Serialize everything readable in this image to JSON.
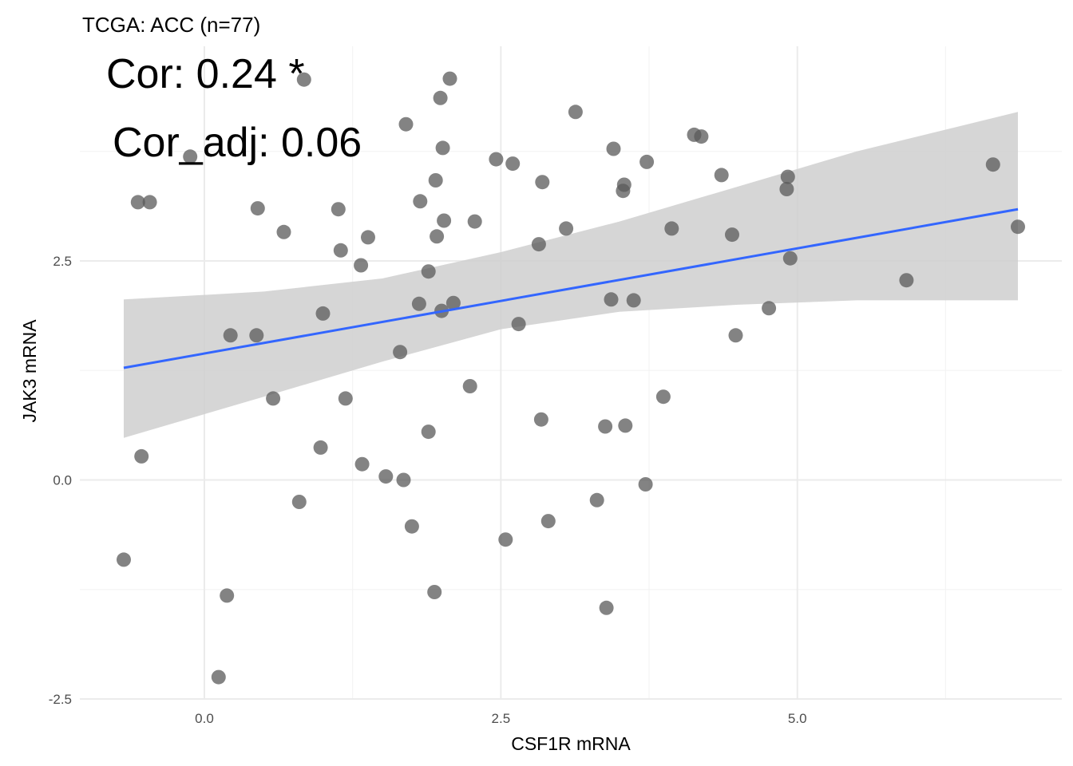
{
  "chart_data": {
    "type": "scatter",
    "title": "TCGA: ACC (n=77)",
    "xlabel": "CSF1R mRNA",
    "ylabel": "JAK3 mRNA",
    "xlim": [
      -1.05,
      7.23
    ],
    "ylim": [
      -2.5,
      4.95
    ],
    "x_ticks": [
      0.0,
      2.5,
      5.0
    ],
    "x_tick_labels": [
      "0.0",
      "2.5",
      "5.0"
    ],
    "y_ticks": [
      -2.5,
      0.0,
      2.5
    ],
    "y_tick_labels": [
      "-2.5",
      "0.0",
      "2.5"
    ],
    "grid": true,
    "annotations": [
      "Cor: 0.24 *",
      "Cor_adj: 0.06"
    ],
    "fit_line": {
      "x": [
        -0.68,
        6.86
      ],
      "y": [
        1.28,
        3.09
      ]
    },
    "confidence_band": {
      "x": [
        -0.68,
        0.5,
        1.5,
        2.5,
        3.5,
        4.5,
        5.5,
        6.86
      ],
      "upper": [
        2.06,
        2.15,
        2.3,
        2.6,
        2.95,
        3.35,
        3.75,
        4.2
      ],
      "lower": [
        0.48,
        0.95,
        1.35,
        1.72,
        1.92,
        2.0,
        2.05,
        2.05
      ]
    },
    "points": [
      {
        "x": -0.68,
        "y": -0.91
      },
      {
        "x": -0.56,
        "y": 3.17
      },
      {
        "x": -0.53,
        "y": 0.27
      },
      {
        "x": -0.46,
        "y": 3.17
      },
      {
        "x": -0.12,
        "y": 3.69
      },
      {
        "x": 0.12,
        "y": -2.25
      },
      {
        "x": 0.19,
        "y": -1.32
      },
      {
        "x": 0.22,
        "y": 1.65
      },
      {
        "x": 0.44,
        "y": 1.65
      },
      {
        "x": 0.45,
        "y": 3.1
      },
      {
        "x": 0.58,
        "y": 0.93
      },
      {
        "x": 0.67,
        "y": 2.83
      },
      {
        "x": 0.8,
        "y": -0.25
      },
      {
        "x": 0.84,
        "y": 4.57
      },
      {
        "x": 0.98,
        "y": 0.37
      },
      {
        "x": 1.0,
        "y": 1.9
      },
      {
        "x": 1.13,
        "y": 3.09
      },
      {
        "x": 1.15,
        "y": 2.62
      },
      {
        "x": 1.19,
        "y": 0.93
      },
      {
        "x": 1.32,
        "y": 2.45
      },
      {
        "x": 1.33,
        "y": 0.18
      },
      {
        "x": 1.38,
        "y": 2.77
      },
      {
        "x": 1.53,
        "y": 0.04
      },
      {
        "x": 1.65,
        "y": 1.46
      },
      {
        "x": 1.68,
        "y": 0.0
      },
      {
        "x": 1.7,
        "y": 4.06
      },
      {
        "x": 1.75,
        "y": -0.53
      },
      {
        "x": 1.81,
        "y": 2.01
      },
      {
        "x": 1.82,
        "y": 3.18
      },
      {
        "x": 1.89,
        "y": 2.38
      },
      {
        "x": 1.89,
        "y": 0.55
      },
      {
        "x": 1.94,
        "y": -1.28
      },
      {
        "x": 1.95,
        "y": 3.42
      },
      {
        "x": 1.96,
        "y": 2.78
      },
      {
        "x": 1.99,
        "y": 4.36
      },
      {
        "x": 2.0,
        "y": 1.93
      },
      {
        "x": 2.01,
        "y": 3.79
      },
      {
        "x": 2.02,
        "y": 2.96
      },
      {
        "x": 2.07,
        "y": 4.58
      },
      {
        "x": 2.1,
        "y": 2.02
      },
      {
        "x": 2.24,
        "y": 1.07
      },
      {
        "x": 2.28,
        "y": 2.95
      },
      {
        "x": 2.46,
        "y": 3.66
      },
      {
        "x": 2.54,
        "y": -0.68
      },
      {
        "x": 2.6,
        "y": 3.61
      },
      {
        "x": 2.65,
        "y": 1.78
      },
      {
        "x": 2.82,
        "y": 2.69
      },
      {
        "x": 2.84,
        "y": 0.69
      },
      {
        "x": 2.85,
        "y": 3.4
      },
      {
        "x": 2.9,
        "y": -0.47
      },
      {
        "x": 3.05,
        "y": 2.87
      },
      {
        "x": 3.13,
        "y": 4.2
      },
      {
        "x": 3.31,
        "y": -0.23
      },
      {
        "x": 3.38,
        "y": 0.61
      },
      {
        "x": 3.39,
        "y": -1.46
      },
      {
        "x": 3.43,
        "y": 2.06
      },
      {
        "x": 3.45,
        "y": 3.78
      },
      {
        "x": 3.53,
        "y": 3.3
      },
      {
        "x": 3.54,
        "y": 3.37
      },
      {
        "x": 3.55,
        "y": 0.62
      },
      {
        "x": 3.62,
        "y": 2.05
      },
      {
        "x": 3.72,
        "y": -0.05
      },
      {
        "x": 3.73,
        "y": 3.63
      },
      {
        "x": 3.87,
        "y": 0.95
      },
      {
        "x": 3.94,
        "y": 2.87
      },
      {
        "x": 4.13,
        "y": 3.94
      },
      {
        "x": 4.19,
        "y": 3.92
      },
      {
        "x": 4.36,
        "y": 3.48
      },
      {
        "x": 4.45,
        "y": 2.8
      },
      {
        "x": 4.48,
        "y": 1.65
      },
      {
        "x": 4.76,
        "y": 1.96
      },
      {
        "x": 4.91,
        "y": 3.32
      },
      {
        "x": 4.92,
        "y": 3.46
      },
      {
        "x": 4.94,
        "y": 2.53
      },
      {
        "x": 5.92,
        "y": 2.28
      },
      {
        "x": 6.65,
        "y": 3.6
      },
      {
        "x": 6.86,
        "y": 2.89
      }
    ]
  },
  "colors": {
    "point": "#5a5a5a",
    "fit_line": "#3366ff",
    "band": "#cfcfcf",
    "grid_major": "#ebebeb",
    "grid_minor": "#f4f4f4"
  }
}
